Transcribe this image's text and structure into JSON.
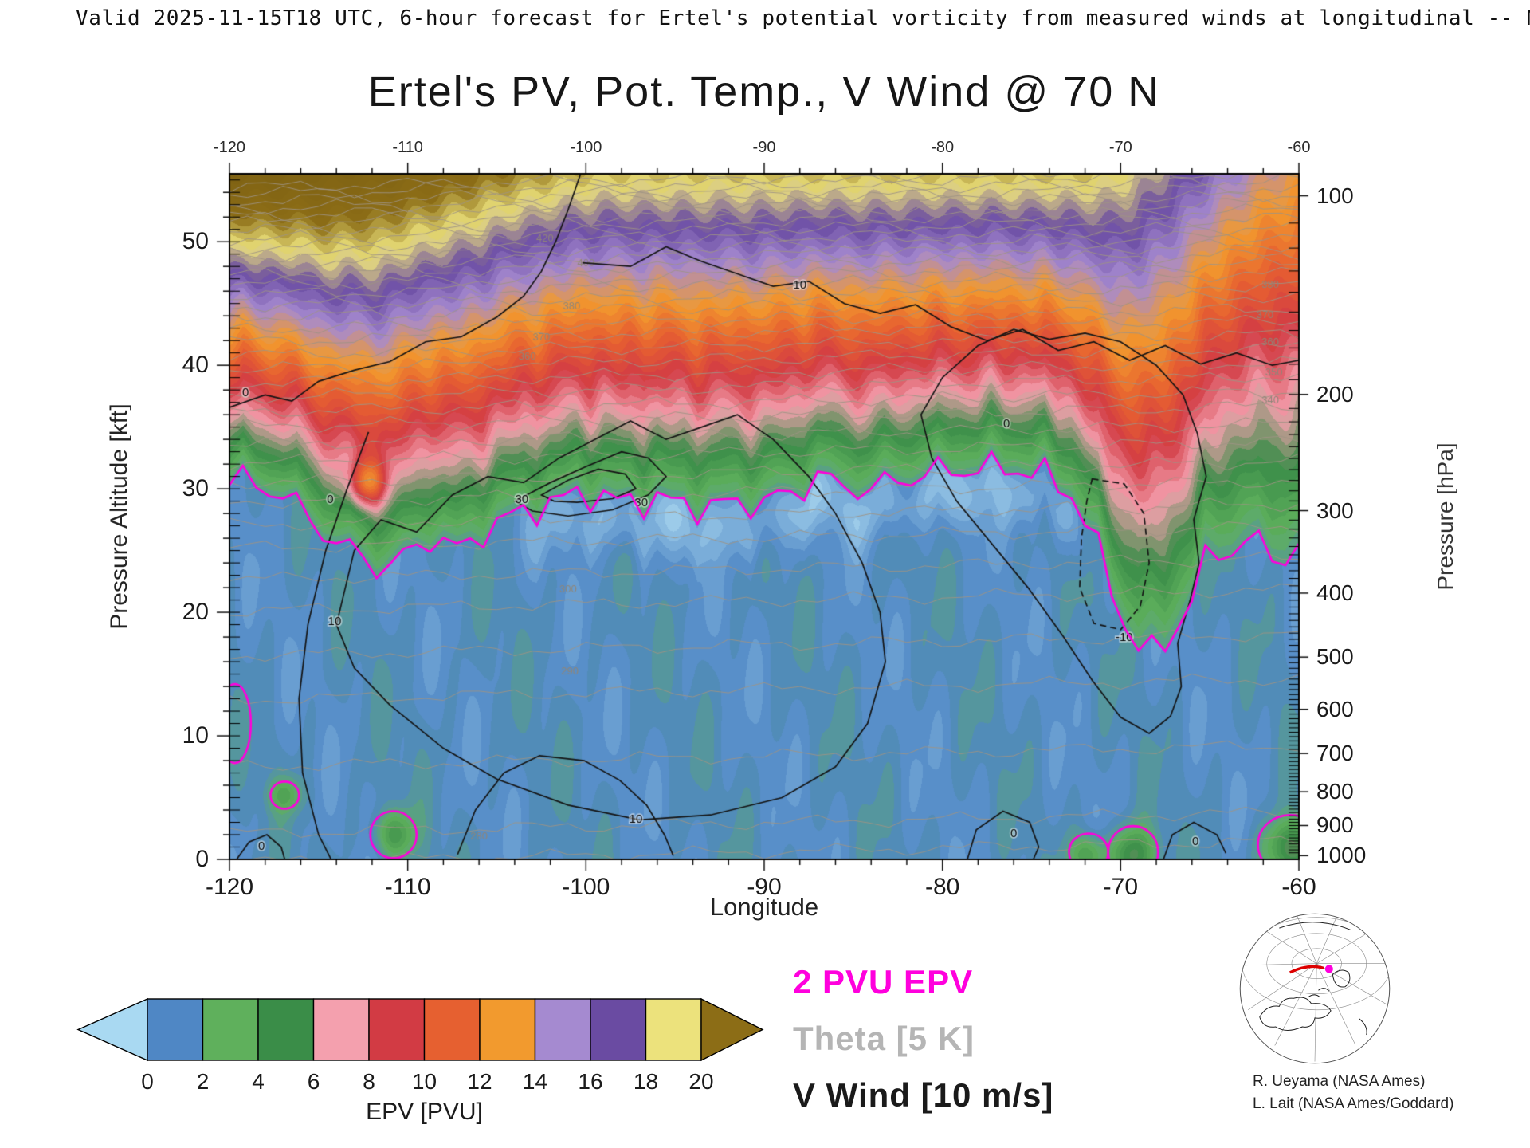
{
  "header": {
    "text": "Valid 2025-11-15T18 UTC, 6-hour forecast for Ertel's potential vorticity from measured winds at longitudinal -- NCE"
  },
  "title": "Ertel's PV, Pot. Temp., V Wind @ 70 N",
  "axes": {
    "x": {
      "label": "Longitude",
      "min": -120,
      "max": -60,
      "major_ticks": [
        -120,
        -110,
        -100,
        -90,
        -80,
        -70,
        -60
      ],
      "minor_step": 2
    },
    "y_left": {
      "label": "Pressure Altitude [kft]",
      "min": 0,
      "max": 55.5,
      "major_ticks": [
        0,
        10,
        20,
        30,
        40,
        50
      ],
      "minor_step": 2
    },
    "y_right": {
      "label": "Pressure [hPa]",
      "major_ticks": [
        100,
        200,
        300,
        400,
        500,
        600,
        700,
        800,
        900,
        1000
      ]
    }
  },
  "colorbar": {
    "label": "EPV [PVU]",
    "tick_values": [
      0,
      2,
      4,
      6,
      8,
      10,
      12,
      14,
      16,
      18,
      20
    ],
    "cell_colors": [
      "#4f87c5",
      "#5fb05c",
      "#3a8d48",
      "#f4a0ae",
      "#d23b44",
      "#e66030",
      "#f29a2e",
      "#a58ad0",
      "#6a4ba2",
      "#ece27c"
    ],
    "under_arrow_color": "#a9d9f2",
    "over_arrow_color": "#8c6d16"
  },
  "legend": {
    "items": [
      {
        "text": "2 PVU EPV",
        "color": "#ff00dd"
      },
      {
        "text": "Theta [5 K]",
        "color": "#b5b5b5"
      },
      {
        "text": "V Wind [10 m/s]",
        "color": "#1a1a1a"
      }
    ]
  },
  "credits": {
    "line1": "R. Ueyama (NASA Ames)",
    "line2": "L. Lait (NASA Ames/Goddard)"
  },
  "inset": {
    "red_line_color": "#dd0000",
    "dot_color": "#ff00dd"
  },
  "chart_data": {
    "type": "heatmap",
    "title": "Ertel's PV, Pot. Temp., V Wind @ 70 N",
    "xlabel": "Longitude",
    "ylabel_left": "Pressure Altitude [kft]",
    "ylabel_right": "Pressure [hPa]",
    "xlim": [
      -120,
      -60
    ],
    "ylim_kft": [
      0,
      55.5
    ],
    "fill_field": "Ertel potential vorticity [PVU]",
    "fill_levels_step": 0.5,
    "pressure_alt_scale_kft_per_ln_hPa": 23.2,
    "palette_anchors": [
      [
        -2,
        "#b5e2f5"
      ],
      [
        1,
        "#4f87c5"
      ],
      [
        3,
        "#5fb05c"
      ],
      [
        5,
        "#3a8d48"
      ],
      [
        7,
        "#f4a0ae"
      ],
      [
        9,
        "#d23b44"
      ],
      [
        11,
        "#e66030"
      ],
      [
        13,
        "#f29a2e"
      ],
      [
        15,
        "#a58ad0"
      ],
      [
        17,
        "#6a4ba2"
      ],
      [
        19,
        "#ece27c"
      ],
      [
        21,
        "#8c6d16"
      ],
      [
        25,
        "#7a5e12"
      ]
    ],
    "tropopause_2pvu_kft": [
      [
        -120,
        30.5
      ],
      [
        -117,
        29.2
      ],
      [
        -115,
        26.6
      ],
      [
        -113,
        24.8
      ],
      [
        -111.5,
        23.8
      ],
      [
        -110,
        25
      ],
      [
        -108.5,
        26.8
      ],
      [
        -107,
        25.2
      ],
      [
        -105.5,
        27.2
      ],
      [
        -104,
        27.9
      ],
      [
        -102,
        28.6
      ],
      [
        -100,
        29.3
      ],
      [
        -98,
        28.4
      ],
      [
        -96,
        28.9
      ],
      [
        -94,
        28.5
      ],
      [
        -92,
        29
      ],
      [
        -90,
        29.4
      ],
      [
        -88,
        30.2
      ],
      [
        -87,
        31.6
      ],
      [
        -86,
        30.4
      ],
      [
        -84,
        30
      ],
      [
        -82,
        30.6
      ],
      [
        -80,
        31
      ],
      [
        -78,
        31.2
      ],
      [
        -76,
        31.5
      ],
      [
        -74,
        31
      ],
      [
        -72.5,
        29.5
      ],
      [
        -71,
        24.5
      ],
      [
        -69.8,
        19.5
      ],
      [
        -68.5,
        16.8
      ],
      [
        -67.2,
        18.2
      ],
      [
        -66,
        21.5
      ],
      [
        -65,
        25
      ],
      [
        -64,
        24.6
      ],
      [
        -63,
        25.8
      ],
      [
        -62,
        24.8
      ],
      [
        -61,
        23.6
      ],
      [
        -60,
        25.2
      ]
    ],
    "two_pvu_blobs": [
      [
        -110.8,
        2.0,
        1.3,
        1.9
      ],
      [
        -116.9,
        5.2,
        0.8,
        1.1
      ],
      [
        -71.8,
        0.6,
        1.1,
        1.5
      ],
      [
        -69.3,
        0.6,
        1.4,
        2.1
      ],
      [
        -60.5,
        1.2,
        1.8,
        2.4
      ],
      [
        -119.7,
        11,
        0.9,
        3.2
      ]
    ],
    "surface_pv_bumps": [
      [
        -110.8,
        2.0,
        3.2,
        0.8,
        1.4
      ],
      [
        -71.8,
        0.3,
        3.2,
        0.7,
        1.2
      ],
      [
        -69.3,
        0.3,
        4.2,
        0.9,
        1.6
      ],
      [
        -60.4,
        0.8,
        4.5,
        1.1,
        1.7
      ],
      [
        -112.3,
        30.5,
        5.5,
        0.7,
        1.3
      ],
      [
        -116.9,
        5.2,
        2.2,
        0.7,
        1.0
      ]
    ],
    "theta_levels": {
      "min": 270,
      "max": 455,
      "step": 5
    },
    "theta_height_table": [
      [
        270,
        -1.5
      ],
      [
        280,
        3.2
      ],
      [
        290,
        14
      ],
      [
        300,
        21.2
      ],
      [
        310,
        26.3
      ],
      [
        320,
        30
      ],
      [
        330,
        33.2
      ],
      [
        340,
        36.1
      ],
      [
        350,
        38.5
      ],
      [
        360,
        40.8
      ],
      [
        370,
        43
      ],
      [
        380,
        45
      ],
      [
        390,
        46.8
      ],
      [
        400,
        48.4
      ],
      [
        410,
        49.9
      ],
      [
        420,
        51.3
      ],
      [
        430,
        52.6
      ],
      [
        440,
        53.8
      ],
      [
        450,
        55
      ],
      [
        460,
        56
      ]
    ],
    "theta_labels": [
      [
        420,
        -102.3,
        50.3
      ],
      [
        400,
        -100,
        48.3
      ],
      [
        380,
        -100.8,
        44.8
      ],
      [
        370,
        -102.5,
        42.3
      ],
      [
        360,
        -103.3,
        40.7
      ],
      [
        380,
        -61.6,
        46.5
      ],
      [
        370,
        -61.9,
        44.1
      ],
      [
        360,
        -61.6,
        41.9
      ],
      [
        350,
        -61.4,
        39.4
      ],
      [
        340,
        -61.6,
        37.2
      ],
      [
        300,
        -101,
        21.9
      ],
      [
        290,
        -100.9,
        15.2
      ],
      [
        280,
        -106,
        1.9
      ]
    ],
    "wind_contours": [
      {
        "closed": true,
        "dashed": false,
        "pts": [
          [
            -114,
            19
          ],
          [
            -113,
            25
          ],
          [
            -111.5,
            27.5
          ],
          [
            -109.5,
            26.5
          ],
          [
            -107.5,
            29.5
          ],
          [
            -105.5,
            31
          ],
          [
            -103.5,
            30.5
          ],
          [
            -101.5,
            32.5
          ],
          [
            -99.5,
            34
          ],
          [
            -97.5,
            35.5
          ],
          [
            -95.5,
            34
          ],
          [
            -93.5,
            35
          ],
          [
            -91.5,
            36
          ],
          [
            -89.5,
            34
          ],
          [
            -87.5,
            31
          ],
          [
            -86,
            28
          ],
          [
            -84.5,
            24
          ],
          [
            -83.5,
            20
          ],
          [
            -83.2,
            16
          ],
          [
            -84.2,
            11
          ],
          [
            -86,
            7.5
          ],
          [
            -89,
            5
          ],
          [
            -93,
            3.6
          ],
          [
            -97,
            3.2
          ],
          [
            -101,
            4.4
          ],
          [
            -105,
            6.5
          ],
          [
            -108,
            9
          ],
          [
            -111,
            12.5
          ],
          [
            -113,
            15.5
          ]
        ],
        "labels": [
          [
            "10",
            -114.1,
            19.3
          ],
          [
            "10",
            -97.2,
            3.3
          ]
        ]
      },
      {
        "closed": true,
        "dashed": false,
        "pts": [
          [
            -104,
            29
          ],
          [
            -102,
            30.5
          ],
          [
            -100,
            31.8
          ],
          [
            -98,
            33
          ],
          [
            -96.5,
            32.5
          ],
          [
            -95.5,
            31
          ],
          [
            -96.5,
            29.5
          ],
          [
            -98.5,
            28.3
          ],
          [
            -101,
            27.8
          ],
          [
            -103,
            28.2
          ]
        ],
        "labels": []
      },
      {
        "closed": true,
        "dashed": false,
        "pts": [
          [
            -102.5,
            29.5
          ],
          [
            -101,
            30.7
          ],
          [
            -99.3,
            31.6
          ],
          [
            -97.8,
            31.2
          ],
          [
            -97.2,
            30
          ],
          [
            -98.5,
            29.2
          ],
          [
            -100.5,
            28.9
          ],
          [
            -101.8,
            29
          ]
        ],
        "labels": [
          [
            "30",
            -103.6,
            29.2
          ],
          [
            "30",
            -96.9,
            28.9
          ]
        ]
      },
      {
        "closed": false,
        "dashed": false,
        "pts": [
          [
            -112.2,
            34.6
          ],
          [
            -113.4,
            30
          ],
          [
            -114.6,
            25
          ],
          [
            -115.6,
            19
          ],
          [
            -116.1,
            13
          ],
          [
            -115.9,
            7
          ],
          [
            -115,
            2
          ],
          [
            -114.3,
            0
          ]
        ],
        "labels": [
          [
            "0",
            -114.35,
            29.2
          ]
        ]
      },
      {
        "closed": false,
        "dashed": false,
        "pts": [
          [
            -120,
            36.6
          ],
          [
            -118,
            37.6
          ],
          [
            -116.5,
            37.1
          ],
          [
            -115,
            38.7
          ],
          [
            -113,
            39.6
          ],
          [
            -111,
            40.3
          ],
          [
            -109,
            41.9
          ],
          [
            -107,
            42.3
          ],
          [
            -105,
            43.9
          ],
          [
            -103.5,
            45.6
          ],
          [
            -102.5,
            47.6
          ],
          [
            -101.7,
            50
          ],
          [
            -101,
            52.6
          ],
          [
            -100.3,
            55.5
          ]
        ],
        "labels": [
          [
            "0",
            -119.1,
            37.8
          ]
        ]
      },
      {
        "closed": false,
        "dashed": false,
        "pts": [
          [
            -100.2,
            48.3
          ],
          [
            -97.5,
            48
          ],
          [
            -95.5,
            49.6
          ],
          [
            -93.5,
            48.4
          ],
          [
            -91.5,
            47.4
          ],
          [
            -89.5,
            46.4
          ],
          [
            -87.5,
            46.8
          ],
          [
            -85.5,
            45
          ],
          [
            -83.5,
            44.2
          ],
          [
            -81.5,
            44.9
          ],
          [
            -79.5,
            43.1
          ],
          [
            -77.5,
            42
          ],
          [
            -75.5,
            42.9
          ],
          [
            -73.5,
            41.2
          ],
          [
            -71.5,
            41.9
          ],
          [
            -69.5,
            40.4
          ],
          [
            -67.5,
            41.6
          ],
          [
            -65.5,
            40.1
          ],
          [
            -63.5,
            41
          ],
          [
            -61.5,
            40
          ],
          [
            -60,
            40.4
          ]
        ],
        "labels": [
          [
            "10",
            -88,
            46.5
          ]
        ]
      },
      {
        "closed": true,
        "dashed": false,
        "pts": [
          [
            -78,
            41.6
          ],
          [
            -80,
            39
          ],
          [
            -81.2,
            36
          ],
          [
            -80.6,
            32.5
          ],
          [
            -79.2,
            29
          ],
          [
            -77.2,
            25.5
          ],
          [
            -75.2,
            22
          ],
          [
            -73.2,
            18
          ],
          [
            -71.6,
            14.5
          ],
          [
            -70,
            11.5
          ],
          [
            -68.4,
            10.2
          ],
          [
            -67.2,
            11.6
          ],
          [
            -66.6,
            14
          ],
          [
            -66.8,
            17.5
          ],
          [
            -66.1,
            21
          ],
          [
            -65.6,
            24
          ],
          [
            -65.9,
            27.5
          ],
          [
            -65.2,
            31
          ],
          [
            -65.7,
            34.5
          ],
          [
            -66.5,
            37.6
          ],
          [
            -68,
            40
          ],
          [
            -70,
            41.9
          ],
          [
            -72,
            42.6
          ],
          [
            -74,
            42.1
          ],
          [
            -76,
            42.9
          ]
        ],
        "labels": [
          [
            "0",
            -76.4,
            35.3
          ]
        ]
      },
      {
        "closed": true,
        "dashed": true,
        "pts": [
          [
            -71.6,
            30.8
          ],
          [
            -69.8,
            30.4
          ],
          [
            -68.7,
            28
          ],
          [
            -68.4,
            24
          ],
          [
            -68.9,
            20.5
          ],
          [
            -70,
            18.6
          ],
          [
            -71.5,
            19.1
          ],
          [
            -72.3,
            22
          ],
          [
            -72.2,
            26
          ],
          [
            -71.9,
            29
          ]
        ],
        "labels": [
          [
            "-10",
            -69.8,
            18
          ]
        ]
      },
      {
        "closed": false,
        "dashed": false,
        "pts": [
          [
            -78.6,
            0
          ],
          [
            -78.1,
            2.4
          ],
          [
            -76.6,
            3.9
          ],
          [
            -75.1,
            3
          ],
          [
            -74.6,
            1
          ],
          [
            -74.9,
            0
          ]
        ],
        "labels": [
          [
            "0",
            -76,
            2.1
          ]
        ]
      },
      {
        "closed": false,
        "dashed": false,
        "pts": [
          [
            -67.6,
            0
          ],
          [
            -67.1,
            2
          ],
          [
            -65.9,
            3
          ],
          [
            -64.6,
            2
          ],
          [
            -64.1,
            0.5
          ]
        ],
        "labels": [
          [
            "0",
            -65.8,
            1.5
          ]
        ]
      },
      {
        "closed": false,
        "dashed": false,
        "pts": [
          [
            -119.6,
            0
          ],
          [
            -118.9,
            1.4
          ],
          [
            -117.9,
            2
          ],
          [
            -117.1,
            1
          ],
          [
            -116.9,
            0
          ]
        ],
        "labels": [
          [
            "0",
            -118.2,
            1.1
          ]
        ]
      },
      {
        "closed": false,
        "dashed": false,
        "pts": [
          [
            -107.2,
            0.4
          ],
          [
            -106.2,
            4
          ],
          [
            -104.6,
            7
          ],
          [
            -102.6,
            8.4
          ],
          [
            -100.1,
            8
          ],
          [
            -98.1,
            6.4
          ],
          [
            -96.6,
            4.4
          ],
          [
            -95.6,
            2
          ],
          [
            -95.1,
            0.3
          ]
        ],
        "labels": []
      }
    ]
  }
}
